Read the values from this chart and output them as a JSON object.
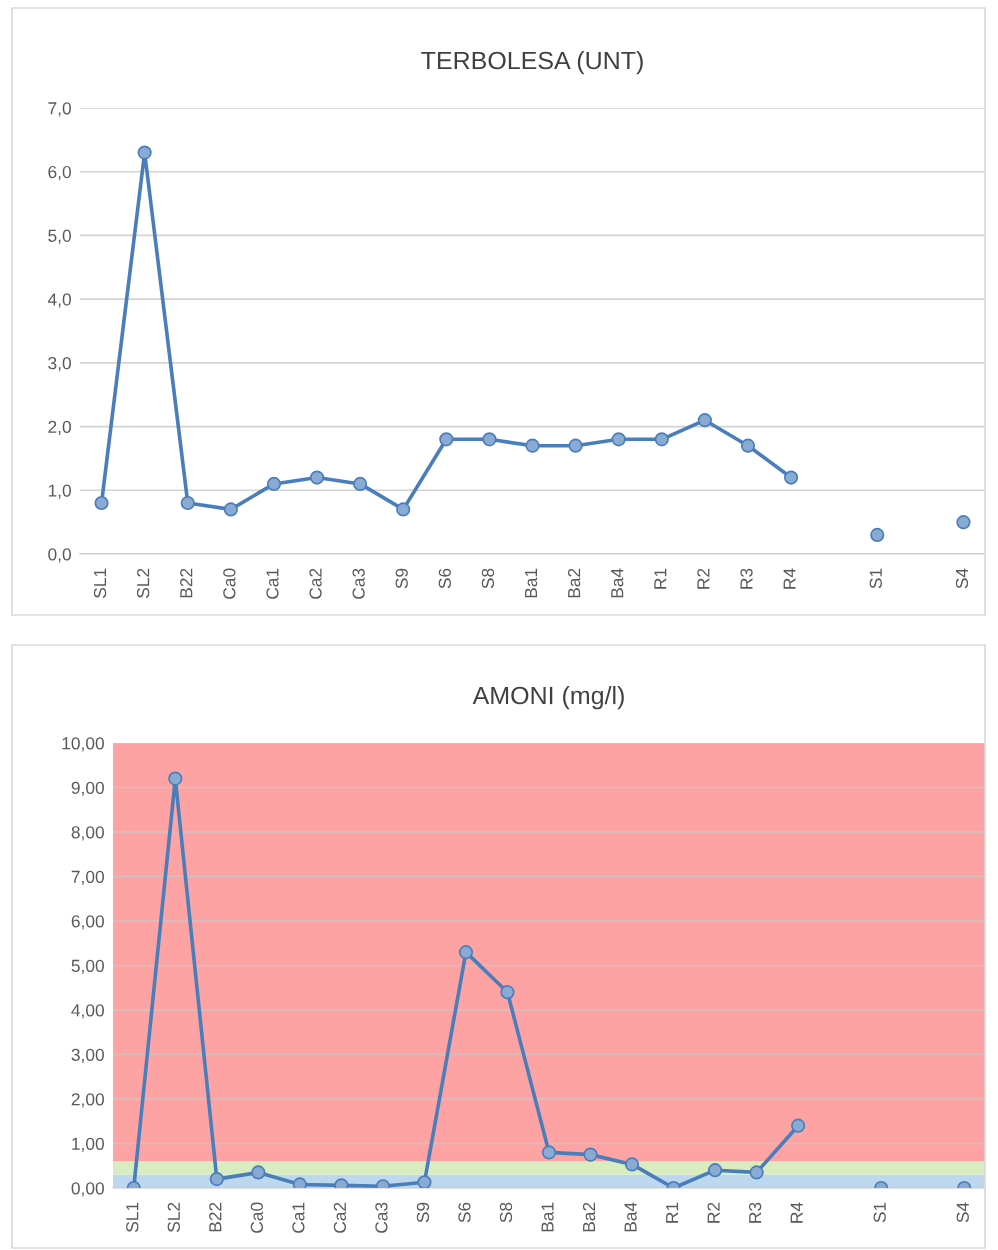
{
  "chart_data": [
    {
      "type": "line",
      "title": "TERBOLESA (UNT)",
      "categories": [
        "SL1",
        "SL2",
        "B22",
        "Ca0",
        "Ca1",
        "Ca2",
        "Ca3",
        "S9",
        "S6",
        "S8",
        "Ba1",
        "Ba2",
        "Ba4",
        "R1",
        "R2",
        "R3",
        "R4",
        null,
        "S1",
        null,
        "S4"
      ],
      "values": [
        0.8,
        6.3,
        0.8,
        0.7,
        1.1,
        1.2,
        1.1,
        0.7,
        1.8,
        1.8,
        1.7,
        1.7,
        1.8,
        1.8,
        2.1,
        1.7,
        1.2,
        null,
        0.3,
        null,
        0.5
      ],
      "color": "#4a7ebb",
      "marker": "circle",
      "line_style": "solid",
      "grid": "y",
      "ylim": [
        0,
        7
      ],
      "yticks": [
        {
          "value": 0,
          "label": "0,0"
        },
        {
          "value": 1,
          "label": "1,0"
        },
        {
          "value": 2,
          "label": "2,0"
        },
        {
          "value": 3,
          "label": "3,0"
        },
        {
          "value": 4,
          "label": "4,0"
        },
        {
          "value": 5,
          "label": "5,0"
        },
        {
          "value": 6,
          "label": "6,0"
        },
        {
          "value": 7,
          "label": "7,0"
        }
      ]
    },
    {
      "type": "line",
      "title": "AMONI (mg/l)",
      "categories": [
        "SL1",
        "SL2",
        "B22",
        "Ca0",
        "Ca1",
        "Ca2",
        "Ca3",
        "S9",
        "S6",
        "S8",
        "Ba1",
        "Ba2",
        "Ba4",
        "R1",
        "R2",
        "R3",
        "R4",
        null,
        "S1",
        null,
        "S4"
      ],
      "values": [
        0,
        9.2,
        0.2,
        0.35,
        0.08,
        0.06,
        0.04,
        0.13,
        5.3,
        4.4,
        0.8,
        0.75,
        0.53,
        0,
        0.4,
        0.35,
        1.4,
        null,
        0,
        null,
        0
      ],
      "color": "#4a7ebb",
      "marker": "circle",
      "line_style": "solid",
      "grid": "y",
      "ylim": [
        0,
        10
      ],
      "yticks": [
        {
          "value": 0,
          "label": "0,00"
        },
        {
          "value": 1,
          "label": "1,00"
        },
        {
          "value": 2,
          "label": "2,00"
        },
        {
          "value": 3,
          "label": "3,00"
        },
        {
          "value": 4,
          "label": "4,00"
        },
        {
          "value": 5,
          "label": "5,00"
        },
        {
          "value": 6,
          "label": "6,00"
        },
        {
          "value": 7,
          "label": "7,00"
        },
        {
          "value": 8,
          "label": "8,00"
        },
        {
          "value": 9,
          "label": "9,00"
        },
        {
          "value": 10,
          "label": "10,00"
        }
      ],
      "bands": [
        {
          "axis": "y",
          "from": 0,
          "to": 0.3,
          "color": "#bdd7ee"
        },
        {
          "axis": "y",
          "from": 0.3,
          "to": 0.6,
          "color": "#d9ecc0"
        },
        {
          "axis": "y",
          "from": 0.6,
          "to": 10,
          "color": "#fea3a3"
        }
      ]
    }
  ]
}
